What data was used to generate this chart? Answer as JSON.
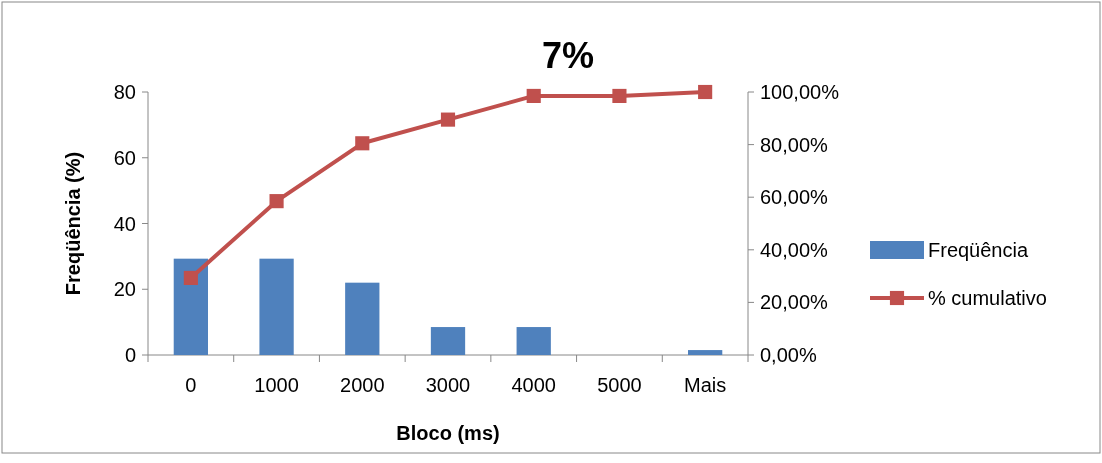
{
  "chart_data": {
    "type": "bar",
    "title": "7%",
    "xlabel": "Bloco (ms)",
    "ylabel": "Freqüência (%)",
    "categories": [
      "0",
      "1000",
      "2000",
      "3000",
      "4000",
      "5000",
      "Mais"
    ],
    "series": [
      {
        "name": "Freqüência",
        "color": "#4f81bd",
        "values": [
          29.3,
          29.3,
          22,
          8.5,
          8.5,
          0,
          1.5
        ]
      },
      {
        "name": "% cumulativo",
        "type": "line",
        "axis": "y2",
        "color": "#c0504d",
        "marker": "square",
        "values": [
          29.3,
          58.5,
          80.5,
          89.5,
          98.5,
          98.5,
          100
        ]
      }
    ],
    "ylim": [
      0,
      80
    ],
    "yticks": [
      0,
      20,
      40,
      60,
      80
    ],
    "y2lim": [
      0,
      100
    ],
    "y2ticks": [
      {
        "value": 0,
        "label": "0,00%"
      },
      {
        "value": 20,
        "label": "20,00%"
      },
      {
        "value": 40,
        "label": "40,00%"
      },
      {
        "value": 60,
        "label": "60,00%"
      },
      {
        "value": 80,
        "label": "80,00%"
      },
      {
        "value": 100,
        "label": "100,00%"
      }
    ],
    "legend": "right"
  }
}
